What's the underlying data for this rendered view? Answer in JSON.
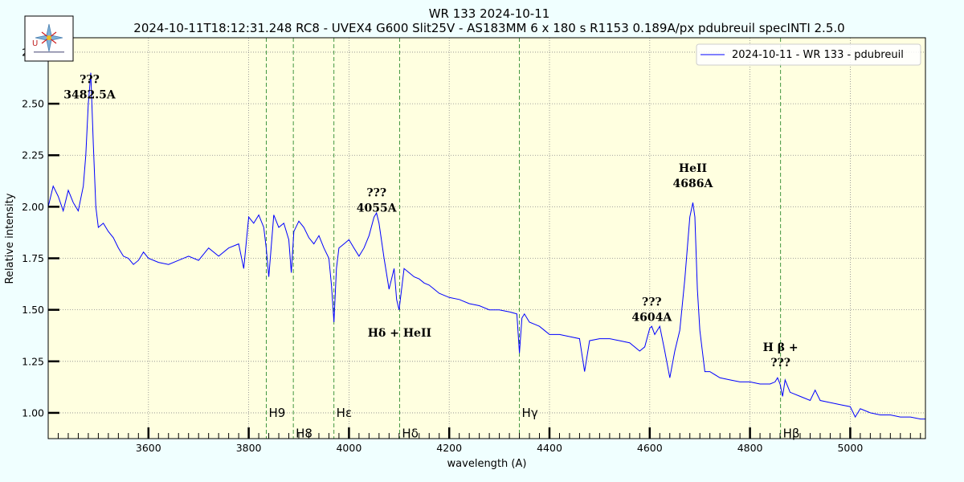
{
  "chart_data": {
    "type": "line",
    "title": "WR 133 2024-10-11",
    "subtitle": "2024-10-11T18:12:31.248 RC8 - UVEX4 G600 Slit25V - AS183MM 6 x 180 s   R1153  0.189A/px  pdubreuil specINTI 2.5.0",
    "xlabel": "wavelength (A)",
    "ylabel": "Relative intensity",
    "xlim": [
      3400,
      5150
    ],
    "ylim": [
      0.875,
      2.82
    ],
    "xticks": [
      3600,
      3800,
      4000,
      4200,
      4400,
      4600,
      4800,
      5000
    ],
    "xtick_labels": [
      "3600",
      "3800",
      "4000",
      "4200",
      "4400",
      "4600",
      "4800",
      "5000"
    ],
    "yticks": [
      1.0,
      1.25,
      1.5,
      1.75,
      2.0,
      2.25,
      2.5,
      2.75
    ],
    "ytick_labels": [
      "1.00",
      "1.25",
      "1.50",
      "1.75",
      "2.00",
      "2.25",
      "2.50",
      "2.75"
    ],
    "grid": true,
    "legend_position": "top-right",
    "background": "#ffffe0",
    "line_color": "#0000ff",
    "series": [
      {
        "name": "2024-10-11 - WR 133 - pdubreuil",
        "x": [
          3400,
          3410,
          3420,
          3430,
          3440,
          3450,
          3460,
          3470,
          3475,
          3480,
          3482,
          3485,
          3490,
          3495,
          3500,
          3510,
          3520,
          3530,
          3540,
          3550,
          3560,
          3570,
          3580,
          3590,
          3600,
          3620,
          3640,
          3660,
          3680,
          3700,
          3720,
          3740,
          3760,
          3780,
          3790,
          3800,
          3810,
          3820,
          3830,
          3835,
          3840,
          3850,
          3860,
          3870,
          3880,
          3885,
          3890,
          3900,
          3910,
          3920,
          3930,
          3940,
          3950,
          3960,
          3965,
          3970,
          3975,
          3980,
          3990,
          4000,
          4010,
          4020,
          4030,
          4040,
          4050,
          4055,
          4060,
          4070,
          4080,
          4090,
          4095,
          4100,
          4105,
          4110,
          4120,
          4130,
          4140,
          4150,
          4160,
          4170,
          4180,
          4190,
          4200,
          4220,
          4240,
          4260,
          4280,
          4300,
          4320,
          4335,
          4340,
          4345,
          4350,
          4360,
          4370,
          4380,
          4390,
          4400,
          4420,
          4440,
          4460,
          4470,
          4480,
          4500,
          4520,
          4540,
          4560,
          4580,
          4590,
          4600,
          4604,
          4610,
          4620,
          4630,
          4640,
          4650,
          4660,
          4670,
          4680,
          4686,
          4690,
          4695,
          4700,
          4705,
          4710,
          4720,
          4740,
          4760,
          4780,
          4800,
          4820,
          4840,
          4850,
          4855,
          4860,
          4865,
          4870,
          4880,
          4900,
          4920,
          4930,
          4940,
          4960,
          4980,
          5000,
          5010,
          5020,
          5040,
          5060,
          5080,
          5100,
          5120,
          5140,
          5150
        ],
        "y": [
          2.0,
          2.1,
          2.05,
          1.98,
          2.08,
          2.02,
          1.98,
          2.1,
          2.25,
          2.5,
          2.56,
          2.65,
          2.3,
          2.0,
          1.9,
          1.92,
          1.88,
          1.85,
          1.8,
          1.76,
          1.75,
          1.72,
          1.74,
          1.78,
          1.75,
          1.73,
          1.72,
          1.74,
          1.76,
          1.74,
          1.8,
          1.76,
          1.8,
          1.82,
          1.7,
          1.95,
          1.92,
          1.96,
          1.9,
          1.8,
          1.66,
          1.96,
          1.9,
          1.92,
          1.84,
          1.68,
          1.88,
          1.93,
          1.9,
          1.85,
          1.82,
          1.86,
          1.8,
          1.75,
          1.62,
          1.44,
          1.7,
          1.8,
          1.82,
          1.84,
          1.8,
          1.76,
          1.8,
          1.86,
          1.95,
          1.97,
          1.92,
          1.75,
          1.6,
          1.7,
          1.55,
          1.5,
          1.6,
          1.7,
          1.68,
          1.66,
          1.65,
          1.63,
          1.62,
          1.6,
          1.58,
          1.57,
          1.56,
          1.55,
          1.53,
          1.52,
          1.5,
          1.5,
          1.49,
          1.48,
          1.29,
          1.46,
          1.48,
          1.44,
          1.43,
          1.42,
          1.4,
          1.38,
          1.38,
          1.37,
          1.36,
          1.2,
          1.35,
          1.36,
          1.36,
          1.35,
          1.34,
          1.3,
          1.32,
          1.41,
          1.42,
          1.38,
          1.42,
          1.3,
          1.17,
          1.3,
          1.4,
          1.65,
          1.95,
          2.02,
          1.95,
          1.6,
          1.4,
          1.3,
          1.2,
          1.2,
          1.17,
          1.16,
          1.15,
          1.15,
          1.14,
          1.14,
          1.15,
          1.17,
          1.14,
          1.08,
          1.16,
          1.1,
          1.08,
          1.06,
          1.11,
          1.06,
          1.05,
          1.04,
          1.03,
          0.98,
          1.02,
          1.0,
          0.99,
          0.99,
          0.98,
          0.98,
          0.97,
          0.97
        ]
      }
    ],
    "reference_lines": [
      {
        "label": "H9",
        "x": 3835,
        "label_y": 1.0
      },
      {
        "label": "H8",
        "x": 3889,
        "label_y": 0.9
      },
      {
        "label": "Hε",
        "x": 3970,
        "label_y": 1.0
      },
      {
        "label": "Hδ",
        "x": 4101,
        "label_y": 0.9
      },
      {
        "label": "Hγ",
        "x": 4340,
        "label_y": 1.0
      },
      {
        "label": "Hβ",
        "x": 4861,
        "label_y": 0.9
      }
    ],
    "annotations": [
      {
        "lines": [
          "???",
          "3482.5A"
        ],
        "x": 3482.5,
        "y": 2.6
      },
      {
        "lines": [
          "???",
          "4055A"
        ],
        "x": 4055,
        "y": 2.05
      },
      {
        "lines": [
          "Hδ + HeII"
        ],
        "x": 4101,
        "y": 1.37
      },
      {
        "lines": [
          "HeII",
          "4686A"
        ],
        "x": 4686,
        "y": 2.17
      },
      {
        "lines": [
          "???",
          "4604A"
        ],
        "x": 4604,
        "y": 1.52
      },
      {
        "lines": [
          "H β +",
          "???"
        ],
        "x": 4861,
        "y": 1.3
      }
    ]
  },
  "logo": {
    "name": "specINTI logo"
  }
}
